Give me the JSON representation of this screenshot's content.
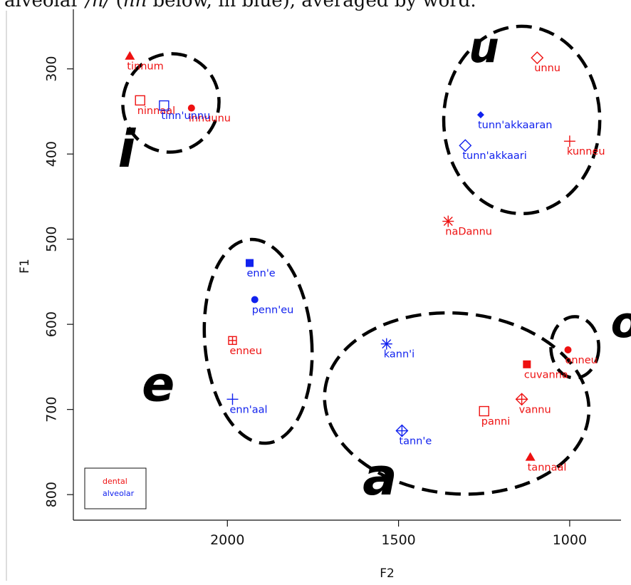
{
  "caption": {
    "prefix": "alveolar ",
    "symbol": "/n/",
    "middle": " (",
    "notation": "nn",
    "suffix": " below, in blue), averaged by word."
  },
  "chart_data": {
    "type": "scatter",
    "xlabel": "F2",
    "ylabel": "F1",
    "xlim": [
      2450,
      850
    ],
    "ylim": [
      830,
      230
    ],
    "x_reversed": true,
    "y_reversed": true,
    "xticks": [
      2000,
      1500,
      1000
    ],
    "yticks": [
      300,
      400,
      500,
      600,
      700,
      800
    ],
    "grid": false,
    "legend_position": "bottom-left",
    "legend": [
      {
        "label": "dental",
        "color": "#ee1111"
      },
      {
        "label": "alveolar",
        "color": "#1122ee"
      }
    ],
    "series": [
      {
        "name": "dental",
        "color": "#ee1111",
        "points": [
          {
            "label": "tinnum",
            "x": 2285,
            "y": 285,
            "marker": "triangle-filled"
          },
          {
            "label": "ninnaal",
            "x": 2255,
            "y": 337,
            "marker": "square-open"
          },
          {
            "label": "innuunu",
            "x": 2105,
            "y": 346,
            "marker": "circle-filled"
          },
          {
            "label": "unnu",
            "x": 1095,
            "y": 287,
            "marker": "diamond-open"
          },
          {
            "label": "kunneu",
            "x": 1000,
            "y": 385,
            "marker": "plus"
          },
          {
            "label": "naDannu",
            "x": 1355,
            "y": 479,
            "marker": "asterisk"
          },
          {
            "label": "enneu",
            "x": 1985,
            "y": 619,
            "marker": "square-plus"
          },
          {
            "label": "onneu",
            "x": 1005,
            "y": 630,
            "marker": "circle-filled"
          },
          {
            "label": "cuvanna",
            "x": 1125,
            "y": 647,
            "marker": "square-filled"
          },
          {
            "label": "vannu",
            "x": 1140,
            "y": 688,
            "marker": "diamond-plus"
          },
          {
            "label": "panni",
            "x": 1250,
            "y": 702,
            "marker": "square-open"
          },
          {
            "label": "tannaal",
            "x": 1115,
            "y": 756,
            "marker": "triangle-filled"
          }
        ]
      },
      {
        "name": "alveolar",
        "color": "#1122ee",
        "points": [
          {
            "label": "tinn'unnu",
            "x": 2185,
            "y": 343,
            "marker": "square-open"
          },
          {
            "label": "tunn'akkaaran",
            "x": 1260,
            "y": 354,
            "marker": "diamond-filled"
          },
          {
            "label": "tunn'akkaari",
            "x": 1305,
            "y": 390,
            "marker": "diamond-open"
          },
          {
            "label": "enn'e",
            "x": 1935,
            "y": 528,
            "marker": "square-filled"
          },
          {
            "label": "penn'eu",
            "x": 1920,
            "y": 571,
            "marker": "circle-filled"
          },
          {
            "label": "enn'aal",
            "x": 1985,
            "y": 688,
            "marker": "plus"
          },
          {
            "label": "kann'i",
            "x": 1535,
            "y": 623,
            "marker": "asterisk"
          },
          {
            "label": "tann'e",
            "x": 1490,
            "y": 725,
            "marker": "diamond-plus"
          }
        ]
      }
    ],
    "annotations": [
      {
        "text": "i",
        "x": 2320,
        "y": 415,
        "size": 72
      },
      {
        "text": "u",
        "x": 1295,
        "y": 292,
        "size": 60
      },
      {
        "text": "e",
        "x": 2250,
        "y": 690,
        "size": 68
      },
      {
        "text": "o",
        "x": 880,
        "y": 615,
        "size": 60
      },
      {
        "text": "a",
        "x": 1605,
        "y": 800,
        "size": 72
      }
    ],
    "ellipses": [
      {
        "cx": 2165,
        "cy": 340,
        "rx": 140,
        "ry": 58,
        "rotate": 21
      },
      {
        "cx": 1140,
        "cy": 360,
        "rx": 228,
        "ry": 110,
        "rotate": 0
      },
      {
        "cx": 1910,
        "cy": 620,
        "rx": 156,
        "ry": 120,
        "rotate": -5
      },
      {
        "cx": 1330,
        "cy": 693,
        "rx": 387,
        "ry": 106,
        "rotate": 5
      },
      {
        "cx": 985,
        "cy": 627,
        "rx": 70,
        "ry": 36,
        "rotate": 0
      }
    ]
  }
}
